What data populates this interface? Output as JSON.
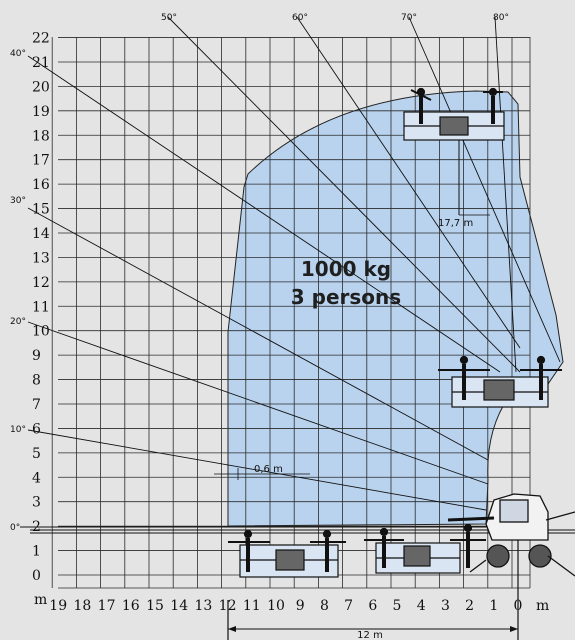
{
  "colors": {
    "background": "#e4e4e4",
    "envelope": "#b9d3ee",
    "grid": "#2a2a2a",
    "ink": "#111111"
  },
  "diagram": {
    "y_ticks": [
      "0",
      "1",
      "2",
      "3",
      "4",
      "5",
      "6",
      "7",
      "8",
      "9",
      "10",
      "11",
      "12",
      "13",
      "14",
      "15",
      "16",
      "17",
      "18",
      "19",
      "20",
      "21",
      "22"
    ],
    "x_ticks": [
      "19",
      "18",
      "17",
      "16",
      "15",
      "14",
      "13",
      "12",
      "11",
      "10",
      "9",
      "8",
      "7",
      "6",
      "5",
      "4",
      "3",
      "2",
      "1",
      "0"
    ],
    "y_unit": "m",
    "x_unit": "m",
    "boom_angles": [
      {
        "label": "0°",
        "deg": 0
      },
      {
        "label": "10°",
        "deg": 10
      },
      {
        "label": "20°",
        "deg": 20
      },
      {
        "label": "30°",
        "deg": 30
      },
      {
        "label": "40°",
        "deg": 40
      },
      {
        "label": "50°",
        "deg": 50
      },
      {
        "label": "60°",
        "deg": 60
      },
      {
        "label": "70°",
        "deg": 70
      },
      {
        "label": "80°",
        "deg": 80
      }
    ],
    "capacity_line1": "1000 kg",
    "capacity_line2": "3 persons",
    "dim_top": "17,7  m",
    "dim_side": "0,6  m",
    "dim_bottom": "12 m"
  }
}
